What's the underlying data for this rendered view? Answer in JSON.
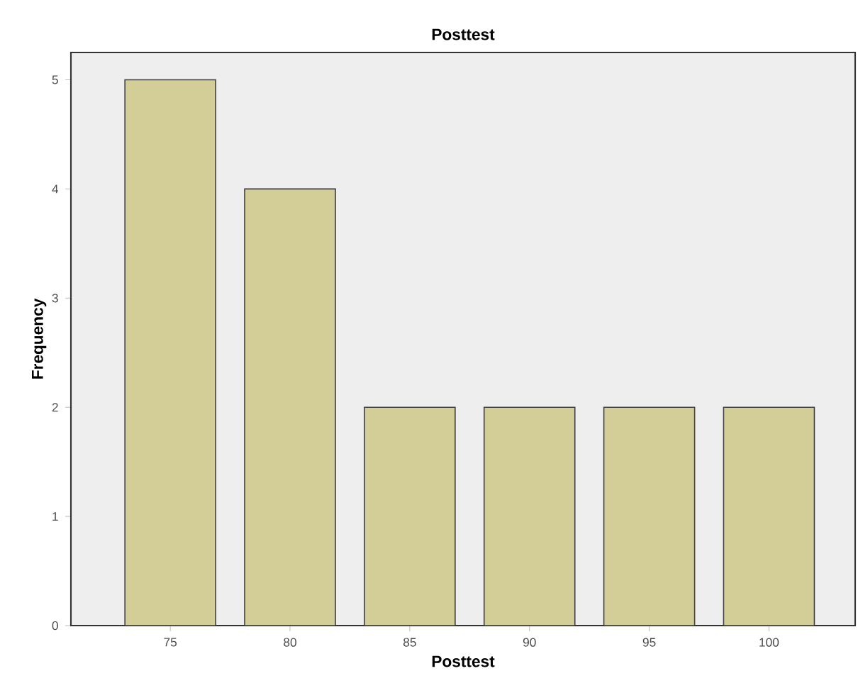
{
  "chart_data": {
    "type": "bar",
    "title": "Posttest",
    "xlabel": "Posttest",
    "ylabel": "Frequency",
    "categories": [
      "75",
      "80",
      "85",
      "90",
      "95",
      "100"
    ],
    "values": [
      5,
      4,
      2,
      2,
      2,
      2
    ],
    "color": "#d3ce97",
    "ylim": [
      0,
      5.25
    ],
    "yticks": [
      0,
      1,
      2,
      3,
      4,
      5
    ]
  }
}
